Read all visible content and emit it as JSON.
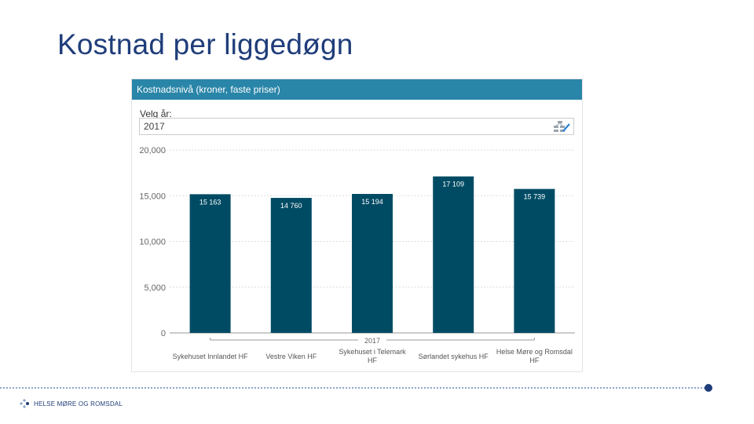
{
  "slide": {
    "title": "Kostnad per liggedøgn"
  },
  "panel": {
    "header": "Kostnadsnivå (kroner, faste priser)",
    "year_label": "Velg år:",
    "year_value": "2017"
  },
  "chart_data": {
    "type": "bar",
    "categories": [
      "Sykehuset Innlandet HF",
      "Vestre Viken HF",
      "Sykehuset i Telemark HF",
      "Sørlandet sykehus HF",
      "Helse Møre og Romsdal HF"
    ],
    "values": [
      15163,
      14760,
      15194,
      17109,
      15739
    ],
    "value_labels": [
      "15 163",
      "14 760",
      "15 194",
      "17 109",
      "15 739"
    ],
    "group_label": "2017",
    "ylim": [
      0,
      20000
    ],
    "yticks": [
      0,
      5000,
      10000,
      15000,
      20000
    ],
    "ytick_labels": [
      "0",
      "5,000",
      "10,000",
      "15,000",
      "20,000"
    ],
    "bar_color": "#004b64",
    "grid": true
  },
  "footer": {
    "logo_text": "HELSE MØRE OG ROMSDAL"
  },
  "colors": {
    "title": "#1f3d7a",
    "header": "#2a86a8",
    "bar": "#004b64",
    "accent": "#1f3d7a"
  }
}
